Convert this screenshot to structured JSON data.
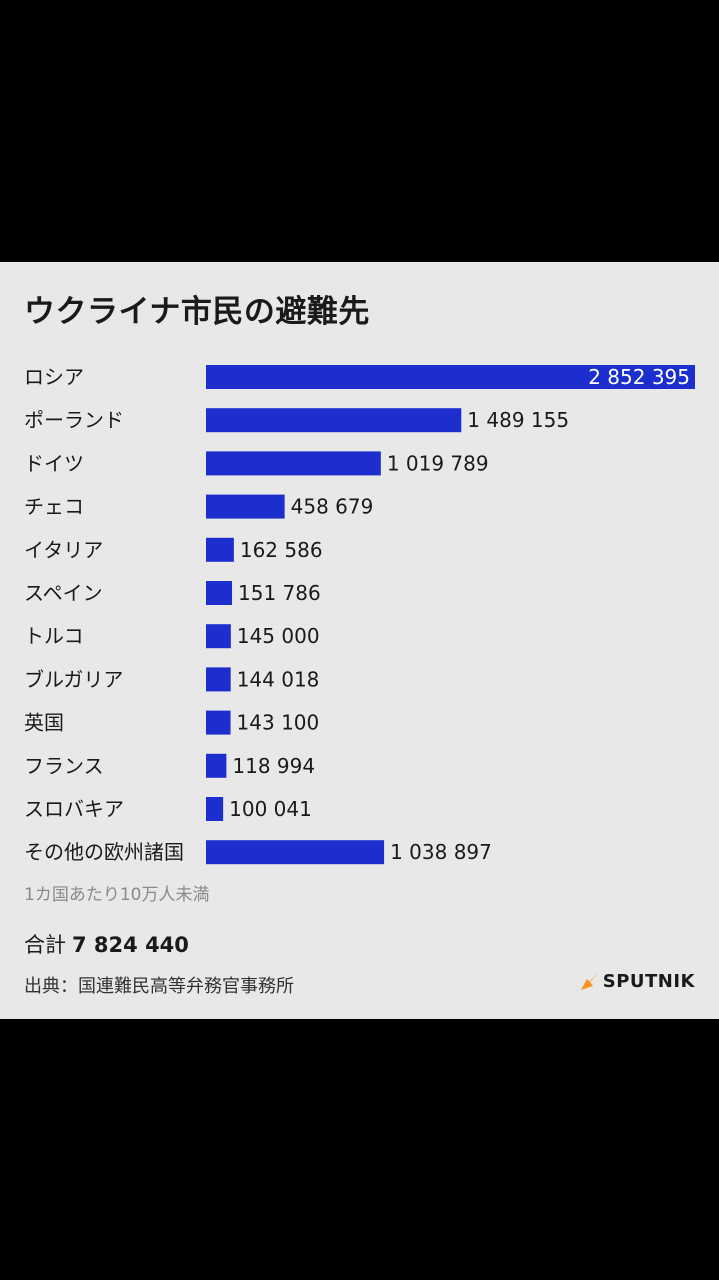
{
  "title": "ウクライナ市民の避難先",
  "chart_data": {
    "type": "bar",
    "orientation": "horizontal",
    "title": "ウクライナ市民の避難先",
    "categories": [
      "ロシア",
      "ポーランド",
      "ドイツ",
      "チェコ",
      "イタリア",
      "スペイン",
      "トルコ",
      "ブルガリア",
      "英国",
      "フランス",
      "スロバキア",
      "その他の欧州諸国"
    ],
    "values": [
      2852395,
      1489155,
      1019789,
      458679,
      162586,
      151786,
      145000,
      144018,
      143100,
      118994,
      100041,
      1038897
    ],
    "value_labels": [
      "2 852 395",
      "1 489 155",
      "1 019 789",
      "458 679",
      "162 586",
      "151 786",
      "145 000",
      "144 018",
      "143 100",
      "118 994",
      "100 041",
      "1 038 897"
    ],
    "bar_color": "#1c2fce",
    "grid": false
  },
  "footnote": "1カ国あたり10万人未満",
  "total": {
    "label": "合計",
    "value": "7 824 440"
  },
  "source": "出典：国連難民高等弁務官事務所",
  "brand": {
    "name": "SPUTNIK",
    "icon": "sputnik-logo-icon",
    "accent": "#f7931e"
  }
}
